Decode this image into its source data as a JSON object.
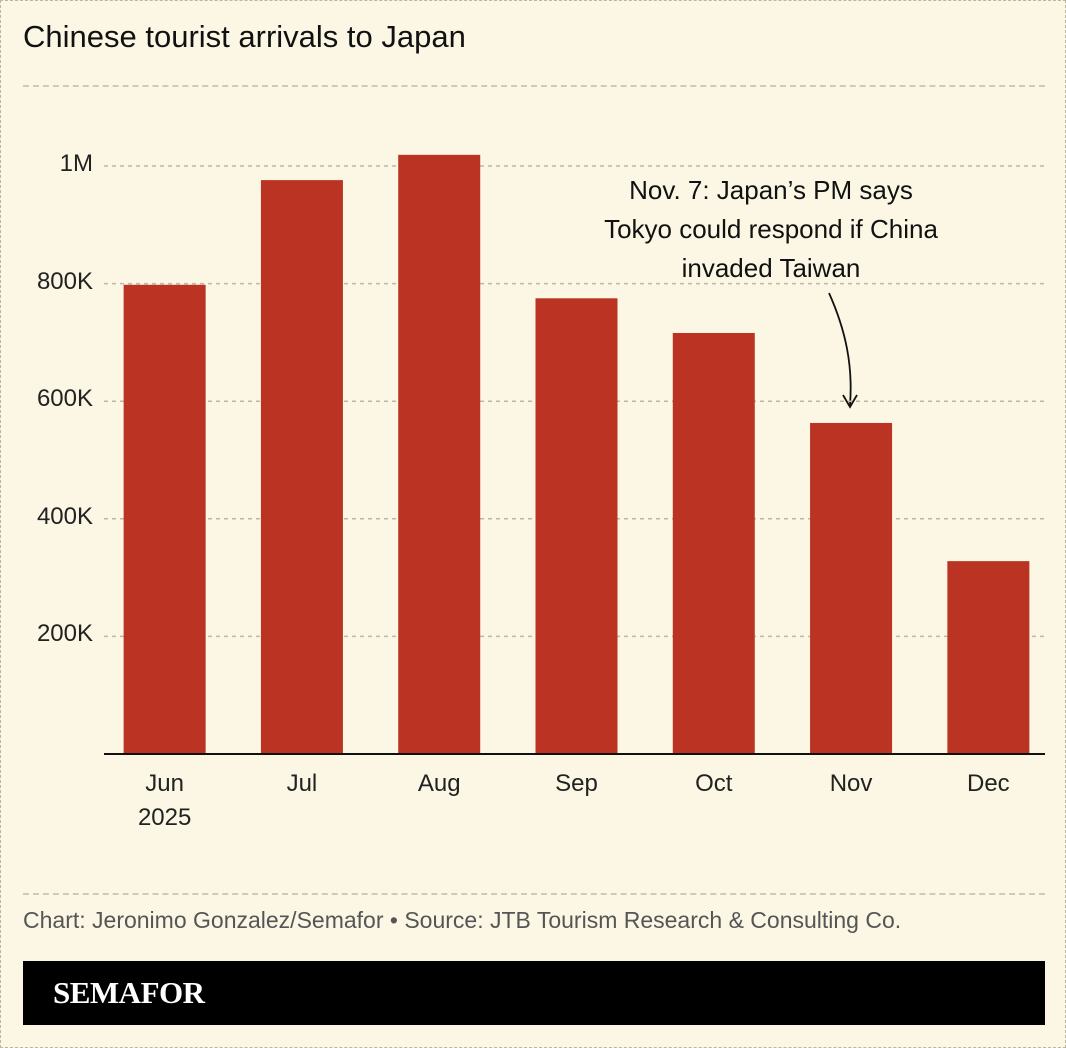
{
  "chart_data": {
    "type": "bar",
    "title": "Chinese tourist arrivals to Japan",
    "categories": [
      "Jun\n2025",
      "Jul",
      "Aug",
      "Sep",
      "Oct",
      "Nov",
      "Dec"
    ],
    "values": [
      798000,
      976000,
      1019000,
      775000,
      716000,
      563000,
      328000
    ],
    "color": "#bb3322",
    "ylim": [
      0,
      1050000
    ],
    "yticks": [
      {
        "value": 200000,
        "label": "200K"
      },
      {
        "value": 400000,
        "label": "400K"
      },
      {
        "value": 600000,
        "label": "600K"
      },
      {
        "value": 800000,
        "label": "800K"
      },
      {
        "value": 1000000,
        "label": "1M"
      }
    ],
    "grid": true,
    "annotation": "Nov. 7: Japan’s PM says\nTokyo could respond if China\ninvaded Taiwan",
    "source": "Chart: Jeronimo Gonzalez/Semafor • Source: JTB Tourism Research & Consulting Co.",
    "brand": "SEMAFOR"
  }
}
